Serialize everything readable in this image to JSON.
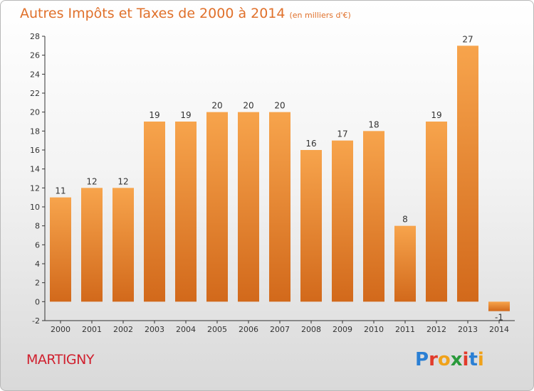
{
  "title": "Autres Impôts et Taxes de 2000 à 2014",
  "unit": "(en milliers d'€)",
  "commune": "MARTIGNY",
  "logo_text": "Proxiti",
  "colors": {
    "title": "#e0702a",
    "bar_light": "#f7a44c",
    "bar_dark": "#d2691b",
    "commune": "#d0202e"
  },
  "chart_data": {
    "type": "bar",
    "title": "Autres Impôts et Taxes de 2000 à 2014",
    "categories": [
      "2000",
      "2001",
      "2002",
      "2003",
      "2004",
      "2005",
      "2006",
      "2007",
      "2008",
      "2009",
      "2010",
      "2011",
      "2012",
      "2013",
      "2014"
    ],
    "values": [
      11,
      12,
      12,
      19,
      19,
      20,
      20,
      20,
      16,
      17,
      18,
      8,
      19,
      27,
      -1
    ],
    "ylim": [
      -2,
      28
    ],
    "yticks": [
      -2,
      0,
      2,
      4,
      6,
      8,
      10,
      12,
      14,
      16,
      18,
      20,
      22,
      24,
      26,
      28
    ],
    "grid": false,
    "data_labels": true
  }
}
